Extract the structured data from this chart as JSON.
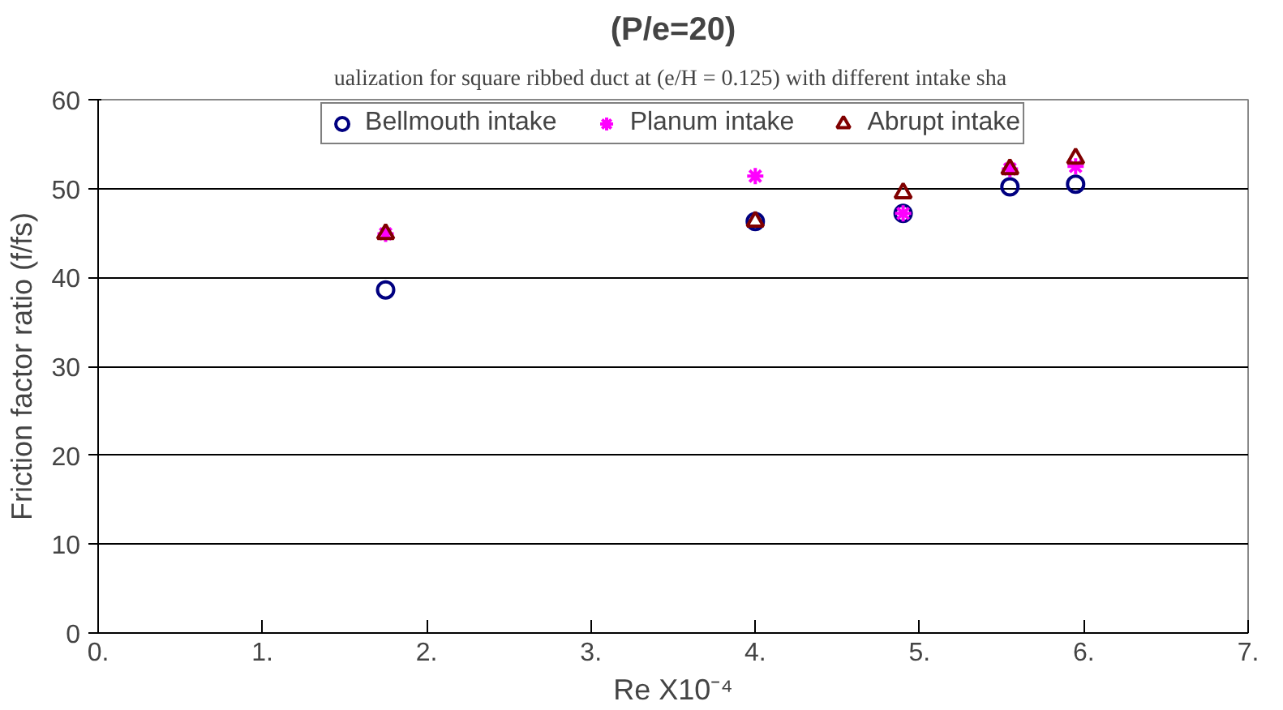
{
  "chart_data": {
    "type": "scatter",
    "title": "(P/e=20)",
    "subtitle": "ualization for square ribbed duct at (e/H = 0.125)  with different intake sha",
    "xlabel": "Re X10⁻⁴",
    "ylabel": "Friction factor ratio (f/fs)",
    "xlim": [
      0,
      7
    ],
    "xticks": [
      {
        "value": 0,
        "label": "0."
      },
      {
        "value": 1,
        "label": "1."
      },
      {
        "value": 2,
        "label": "2."
      },
      {
        "value": 3,
        "label": "3."
      },
      {
        "value": 4,
        "label": "4."
      },
      {
        "value": 5,
        "label": "5."
      },
      {
        "value": 6,
        "label": "6."
      },
      {
        "value": 7,
        "label": "7."
      }
    ],
    "ylim": [
      0,
      60
    ],
    "yticks": [
      0,
      10,
      20,
      30,
      40,
      50,
      60
    ],
    "grid": "y",
    "legend": "top",
    "series": [
      {
        "name": "Bellmouth intake",
        "color": "#000080",
        "marker": "circle",
        "x": [
          1.75,
          4.0,
          4.9,
          5.55,
          5.95
        ],
        "values": [
          38.6,
          46.3,
          47.2,
          50.2,
          50.5
        ]
      },
      {
        "name": "Planum intake",
        "color": "#ff00ff",
        "marker": "cross",
        "x": [
          1.75,
          4.0,
          4.9,
          5.55,
          5.95
        ],
        "values": [
          44.9,
          51.4,
          47.2,
          52.2,
          52.5
        ]
      },
      {
        "name": "Abrupt intake",
        "color": "#800000",
        "marker": "triangle",
        "x": [
          1.75,
          4.0,
          4.9,
          5.55,
          5.95
        ],
        "values": [
          44.9,
          46.3,
          49.5,
          52.2,
          53.4
        ]
      }
    ]
  }
}
